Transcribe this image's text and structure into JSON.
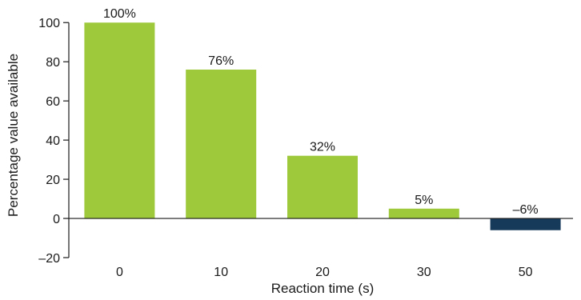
{
  "chart_data": {
    "type": "bar",
    "categories": [
      "0",
      "10",
      "20",
      "30",
      "50"
    ],
    "values": [
      100,
      76,
      32,
      5,
      -6
    ],
    "data_labels": [
      "100%",
      "76%",
      "32%",
      "5%",
      "–6%"
    ],
    "xlabel": "Reaction time (s)",
    "ylabel": "Percentage value available",
    "ylim": [
      -20,
      105
    ],
    "yticks": [
      -20,
      0,
      20,
      40,
      60,
      80,
      100
    ],
    "ytick_labels": [
      "–20",
      "0",
      "20",
      "40",
      "60",
      "80",
      "100"
    ],
    "grid": false,
    "colors": {
      "positive": "#9dc93b",
      "negative": "#163a5a"
    }
  }
}
